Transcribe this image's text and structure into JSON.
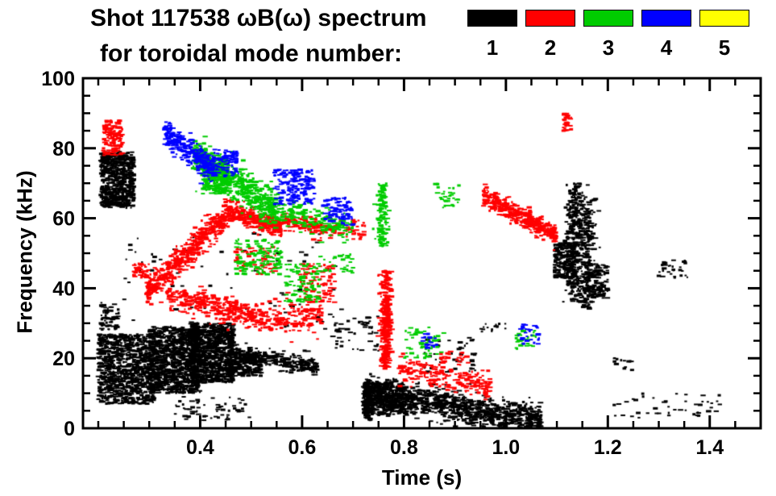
{
  "title": {
    "line1": "Shot 117538 ωB(ω) spectrum",
    "line2": "for toroidal mode number:"
  },
  "legend": {
    "modes": [
      {
        "label": "1",
        "color": "#000000"
      },
      {
        "label": "2",
        "color": "#ff0000"
      },
      {
        "label": "3",
        "color": "#00cc00"
      },
      {
        "label": "4",
        "color": "#0000ff"
      },
      {
        "label": "5",
        "color": "#ffff00"
      }
    ]
  },
  "chart_data": {
    "type": "scatter",
    "title": "Shot 117538 ωB(ω) spectrum for toroidal mode number: 1-5",
    "xlabel": "Time (s)",
    "ylabel": "Frequency (kHz)",
    "xlim": [
      0.17,
      1.5
    ],
    "ylim": [
      0,
      100
    ],
    "grid": false,
    "legend_position": "top-right",
    "xticks": {
      "major": [
        0.4,
        0.6,
        0.8,
        1.0,
        1.2,
        1.4
      ],
      "labels": [
        "0.4",
        "0.6",
        "0.8",
        "1.0",
        "1.2",
        "1.4"
      ],
      "minor_step": 0.05
    },
    "yticks": {
      "major": [
        0,
        20,
        40,
        60,
        80,
        100
      ],
      "labels": [
        "0",
        "20",
        "40",
        "60",
        "80",
        "100"
      ],
      "minor_step": 5
    },
    "series": [
      {
        "name": "n=1",
        "color": "#000000",
        "clusters": [
          {
            "type": "blob",
            "t0": 0.205,
            "t1": 0.27,
            "f0": 63,
            "f1": 79,
            "n": 650
          },
          {
            "type": "blob",
            "t0": 0.2,
            "t1": 0.31,
            "f0": 7,
            "f1": 27,
            "n": 900
          },
          {
            "type": "blob",
            "t0": 0.3,
            "t1": 0.4,
            "f0": 10,
            "f1": 29,
            "n": 1000
          },
          {
            "type": "blob",
            "t0": 0.38,
            "t1": 0.465,
            "f0": 13,
            "f1": 30,
            "n": 900
          },
          {
            "type": "band",
            "t0": 0.455,
            "t1": 0.63,
            "f0": 22,
            "f1": 17.5,
            "j": 1.2,
            "n": 320
          },
          {
            "type": "blob",
            "t0": 0.455,
            "t1": 0.52,
            "f0": 15,
            "f1": 21,
            "n": 220
          },
          {
            "type": "band",
            "t0": 0.72,
            "t1": 1.07,
            "f0": 10,
            "f1": 2.5,
            "j": 2.2,
            "n": 1100
          },
          {
            "type": "blob",
            "t0": 0.72,
            "t1": 0.8,
            "f0": 4,
            "f1": 13,
            "n": 350
          },
          {
            "type": "vstreak",
            "t": 0.73,
            "sig": 0.004,
            "f0": 2,
            "f1": 14,
            "n": 120
          },
          {
            "type": "blob",
            "t0": 1.095,
            "t1": 1.135,
            "f0": 43,
            "f1": 53,
            "n": 200
          },
          {
            "type": "vstreak",
            "t": 1.135,
            "sig": 0.008,
            "f0": 36,
            "f1": 70,
            "n": 300
          },
          {
            "type": "vstreak",
            "t": 1.16,
            "sig": 0.008,
            "f0": 34,
            "f1": 66,
            "n": 240
          },
          {
            "type": "blob",
            "t0": 1.17,
            "t1": 1.2,
            "f0": 37,
            "f1": 47,
            "n": 90
          },
          {
            "type": "blob",
            "t0": 0.24,
            "t1": 0.68,
            "f0": 28,
            "f1": 56,
            "n": 70
          },
          {
            "type": "blob",
            "t0": 0.66,
            "t1": 0.75,
            "f0": 22,
            "f1": 32,
            "n": 50
          },
          {
            "type": "blob",
            "t0": 0.84,
            "t1": 0.95,
            "f0": 16,
            "f1": 26,
            "n": 45
          },
          {
            "type": "blob",
            "t0": 1.2,
            "t1": 1.42,
            "f0": 3,
            "f1": 10,
            "n": 45
          },
          {
            "type": "blob",
            "t0": 1.3,
            "t1": 1.37,
            "f0": 43,
            "f1": 48,
            "n": 30
          },
          {
            "type": "blob",
            "t0": 0.205,
            "t1": 0.24,
            "f0": 28,
            "f1": 36,
            "n": 60
          },
          {
            "type": "blob",
            "t0": 0.35,
            "t1": 0.5,
            "f0": 2,
            "f1": 9,
            "n": 60
          },
          {
            "type": "blob",
            "t0": 0.95,
            "t1": 1.0,
            "f0": 27,
            "f1": 30,
            "n": 15
          },
          {
            "type": "blob",
            "t0": 1.21,
            "t1": 1.25,
            "f0": 16,
            "f1": 21,
            "n": 15
          }
        ]
      },
      {
        "name": "n=2",
        "color": "#ff0000",
        "clusters": [
          {
            "type": "blob",
            "t0": 0.21,
            "t1": 0.248,
            "f0": 78,
            "f1": 88,
            "n": 150
          },
          {
            "type": "blob",
            "t0": 0.27,
            "t1": 0.3,
            "f0": 43,
            "f1": 47,
            "n": 40
          },
          {
            "type": "band",
            "t0": 0.295,
            "t1": 0.46,
            "f0": 39,
            "f1": 62,
            "j": 2.0,
            "n": 550
          },
          {
            "type": "band",
            "t0": 0.455,
            "t1": 0.56,
            "f0": 62,
            "f1": 57,
            "j": 1.4,
            "n": 300
          },
          {
            "type": "band",
            "t0": 0.56,
            "t1": 0.665,
            "f0": 59.5,
            "f1": 56.5,
            "j": 1.2,
            "n": 140
          },
          {
            "type": "band",
            "t0": 0.335,
            "t1": 0.53,
            "f0": 38,
            "f1": 31,
            "j": 1.8,
            "n": 380
          },
          {
            "type": "band",
            "t0": 0.53,
            "t1": 0.64,
            "f0": 31,
            "f1": 33,
            "j": 2.5,
            "n": 160
          },
          {
            "type": "blob",
            "t0": 0.595,
            "t1": 0.665,
            "f0": 36,
            "f1": 47,
            "n": 90
          },
          {
            "type": "blob",
            "t0": 0.47,
            "t1": 0.55,
            "f0": 44,
            "f1": 52,
            "n": 60
          },
          {
            "type": "vstreak",
            "t": 0.765,
            "sig": 0.006,
            "f0": 17,
            "f1": 45,
            "n": 320
          },
          {
            "type": "band",
            "t0": 0.79,
            "t1": 0.97,
            "f0": 17,
            "f1": 12,
            "j": 1.8,
            "n": 230
          },
          {
            "type": "blob",
            "t0": 0.87,
            "t1": 0.93,
            "f0": 18,
            "f1": 22,
            "n": 25
          },
          {
            "type": "band",
            "t0": 0.955,
            "t1": 1.1,
            "f0": 66.5,
            "f1": 55,
            "j": 1.4,
            "n": 420
          },
          {
            "type": "blob",
            "t0": 1.112,
            "t1": 1.128,
            "f0": 85,
            "f1": 90,
            "n": 35
          },
          {
            "type": "blob",
            "t0": 0.66,
            "t1": 0.73,
            "f0": 54,
            "f1": 60,
            "n": 40
          }
        ]
      },
      {
        "name": "n=3",
        "color": "#00cc00",
        "clusters": [
          {
            "type": "band",
            "t0": 0.385,
            "t1": 0.55,
            "f0": 79,
            "f1": 62,
            "j": 2.5,
            "n": 600
          },
          {
            "type": "blob",
            "t0": 0.405,
            "t1": 0.455,
            "f0": 67,
            "f1": 77,
            "n": 200
          },
          {
            "type": "band",
            "t0": 0.55,
            "t1": 0.7,
            "f0": 62,
            "f1": 57,
            "j": 2.0,
            "n": 180
          },
          {
            "type": "blob",
            "t0": 0.47,
            "t1": 0.56,
            "f0": 44,
            "f1": 54,
            "n": 130
          },
          {
            "type": "blob",
            "t0": 0.565,
            "t1": 0.635,
            "f0": 36,
            "f1": 47,
            "n": 90
          },
          {
            "type": "vstreak",
            "t": 0.758,
            "sig": 0.006,
            "f0": 52,
            "f1": 70,
            "n": 130
          },
          {
            "type": "blob",
            "t0": 0.8,
            "t1": 0.88,
            "f0": 20,
            "f1": 29,
            "n": 55
          },
          {
            "type": "blob",
            "t0": 1.02,
            "t1": 1.065,
            "f0": 22,
            "f1": 28,
            "n": 30
          },
          {
            "type": "blob",
            "t0": 0.86,
            "t1": 0.91,
            "f0": 63,
            "f1": 70,
            "n": 30
          },
          {
            "type": "blob",
            "t0": 0.63,
            "t1": 0.7,
            "f0": 44,
            "f1": 50,
            "n": 35
          }
        ]
      },
      {
        "name": "n=4",
        "color": "#0000ff",
        "clusters": [
          {
            "type": "band",
            "t0": 0.33,
            "t1": 0.425,
            "f0": 85,
            "f1": 74,
            "j": 2.0,
            "n": 280
          },
          {
            "type": "blob",
            "t0": 0.425,
            "t1": 0.475,
            "f0": 72,
            "f1": 80,
            "n": 90
          },
          {
            "type": "blob",
            "t0": 0.545,
            "t1": 0.625,
            "f0": 64,
            "f1": 74,
            "n": 170
          },
          {
            "type": "blob",
            "t0": 0.64,
            "t1": 0.7,
            "f0": 58,
            "f1": 66,
            "n": 80
          },
          {
            "type": "blob",
            "t0": 0.835,
            "t1": 0.865,
            "f0": 22,
            "f1": 27,
            "n": 18
          },
          {
            "type": "blob",
            "t0": 1.025,
            "t1": 1.065,
            "f0": 24,
            "f1": 30,
            "n": 28
          }
        ]
      },
      {
        "name": "n=5",
        "color": "#ffff00",
        "clusters": []
      }
    ]
  }
}
